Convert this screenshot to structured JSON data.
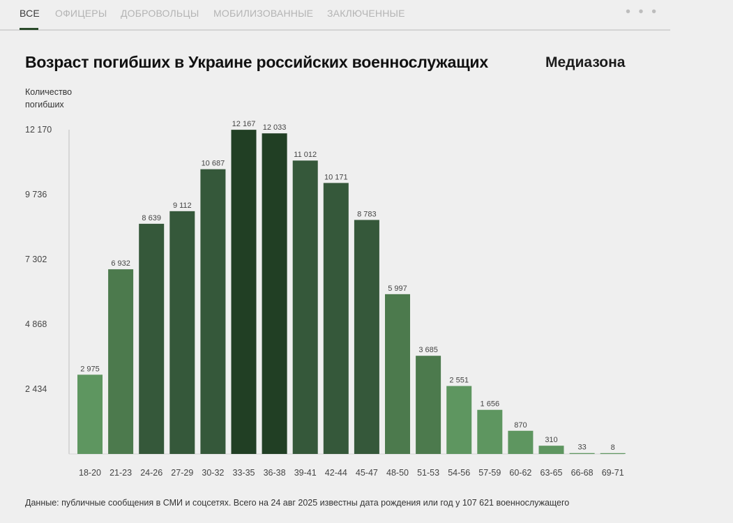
{
  "tabs": [
    {
      "label": "ВСЕ",
      "active": true
    },
    {
      "label": "ОФИЦЕРЫ",
      "active": false
    },
    {
      "label": "ДОБРОВОЛЬЦЫ",
      "active": false
    },
    {
      "label": "МОБИЛИЗОВАННЫЕ",
      "active": false
    },
    {
      "label": "ЗАКЛЮЧЕННЫЕ",
      "active": false
    }
  ],
  "more_label": "• • •",
  "brand": "Медиазона",
  "footnote": "Данные: публичные сообщения в СМИ и соцсетях. Всего на 24 авг 2025 известны дата рождения или год у 107 621 военнослужащего",
  "chart_data": {
    "type": "bar",
    "title": "Возраст погибших в Украине российских военнослужащих",
    "ylabel": "Количество погибших",
    "xlabel": "",
    "ylim": [
      0,
      12170
    ],
    "yticks": [
      2434,
      4868,
      7302,
      9736,
      12170
    ],
    "ytick_labels": [
      "2 434",
      "4 868",
      "7 302",
      "9 736",
      "12 170"
    ],
    "grid": false,
    "categories": [
      "18-20",
      "21-23",
      "24-26",
      "27-29",
      "30-32",
      "33-35",
      "36-38",
      "39-41",
      "42-44",
      "45-47",
      "48-50",
      "51-53",
      "54-56",
      "57-59",
      "60-62",
      "63-65",
      "66-68",
      "69-71"
    ],
    "values": [
      2975,
      6932,
      8639,
      9112,
      10687,
      12167,
      12033,
      11012,
      10171,
      8783,
      5997,
      3685,
      2551,
      1656,
      870,
      310,
      33,
      8
    ],
    "value_labels": [
      "2 975",
      "6 932",
      "8 639",
      "9 112",
      "10 687",
      "12 167",
      "12 033",
      "11 012",
      "10 171",
      "8 783",
      "5 997",
      "3 685",
      "2 551",
      "1 656",
      "870",
      "310",
      "33",
      "8"
    ],
    "colors": {
      "light": "#5e9660",
      "mid": "#4c7a4d",
      "dark": "#35583a",
      "darkest": "#213f24"
    }
  }
}
